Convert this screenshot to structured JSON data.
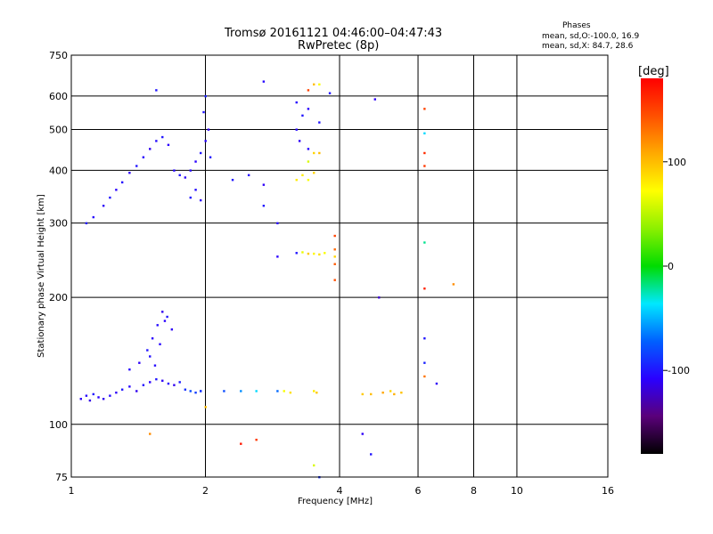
{
  "header": {
    "title_line1": "Tromsø 20161121 04:46:00–04:47:43",
    "title_line2": "RwPretec (8p)"
  },
  "stats": {
    "heading": "Phases",
    "line_o": "mean, sd,O:-100.0, 16.9",
    "line_x": "mean, sd,X: 84.7, 28.6"
  },
  "colorbar": {
    "label": "[deg]",
    "ticks": [
      "100",
      "0",
      "-100"
    ],
    "range": [
      -180,
      180
    ]
  },
  "chart_data": {
    "type": "scatter",
    "xlabel": "Frequency [MHz]",
    "ylabel": "Stationary phase Virtual Height [km]",
    "xscale": "log",
    "yscale": "log",
    "xlim": [
      1,
      16
    ],
    "ylim": [
      75,
      750
    ],
    "xticks": [
      1,
      2,
      4,
      6,
      8,
      10,
      16
    ],
    "yticks": [
      75,
      100,
      200,
      300,
      400,
      500,
      600,
      750
    ],
    "grid": true,
    "color_encoding": "phase [deg]",
    "series": [
      {
        "points": [
          [
            1.05,
            115,
            -110
          ],
          [
            1.08,
            117,
            -105
          ],
          [
            1.1,
            114,
            -115
          ],
          [
            1.12,
            118,
            -100
          ],
          [
            1.15,
            116,
            -108
          ],
          [
            1.18,
            115,
            -112
          ],
          [
            1.22,
            117,
            -104
          ],
          [
            1.26,
            119,
            -110
          ],
          [
            1.3,
            121,
            -100
          ],
          [
            1.35,
            123,
            -106
          ],
          [
            1.4,
            120,
            -112
          ],
          [
            1.45,
            124,
            -102
          ],
          [
            1.5,
            126,
            -108
          ],
          [
            1.55,
            128,
            -100
          ],
          [
            1.6,
            127,
            -110
          ],
          [
            1.65,
            125,
            -104
          ],
          [
            1.7,
            124,
            -112
          ],
          [
            1.75,
            126,
            -98
          ],
          [
            1.8,
            121,
            -90
          ],
          [
            1.85,
            120,
            -80
          ],
          [
            1.9,
            119,
            -85
          ],
          [
            1.95,
            120,
            -75
          ],
          [
            1.35,
            135,
            -105
          ],
          [
            1.42,
            140,
            -110
          ],
          [
            1.48,
            150,
            -100
          ],
          [
            1.52,
            160,
            -108
          ],
          [
            1.56,
            172,
            -104
          ],
          [
            1.6,
            185,
            -112
          ],
          [
            1.64,
            180,
            -100
          ],
          [
            1.68,
            168,
            -110
          ],
          [
            1.5,
            145,
            -102
          ],
          [
            1.58,
            155,
            -106
          ],
          [
            1.62,
            176,
            -108
          ],
          [
            1.54,
            138,
            -104
          ],
          [
            1.08,
            300,
            -100
          ],
          [
            1.12,
            310,
            -105
          ],
          [
            1.18,
            330,
            -110
          ],
          [
            1.22,
            345,
            -100
          ],
          [
            1.26,
            360,
            -108
          ],
          [
            1.3,
            375,
            -104
          ],
          [
            1.35,
            395,
            -110
          ],
          [
            1.4,
            410,
            -100
          ],
          [
            1.45,
            430,
            -106
          ],
          [
            1.5,
            450,
            -112
          ],
          [
            1.55,
            470,
            -104
          ],
          [
            1.6,
            480,
            -100
          ],
          [
            1.65,
            460,
            -108
          ],
          [
            1.7,
            400,
            -105
          ],
          [
            1.75,
            390,
            -100
          ],
          [
            1.8,
            385,
            -110
          ],
          [
            1.85,
            400,
            -104
          ],
          [
            1.9,
            420,
            -108
          ],
          [
            1.95,
            440,
            -100
          ],
          [
            2.0,
            470,
            -106
          ],
          [
            2.03,
            500,
            -110
          ],
          [
            2.05,
            430,
            -100
          ],
          [
            1.9,
            360,
            -104
          ],
          [
            1.95,
            340,
            -110
          ],
          [
            1.85,
            345,
            -100
          ],
          [
            1.98,
            550,
            -100
          ],
          [
            2.0,
            600,
            -95
          ],
          [
            2.3,
            380,
            -100
          ],
          [
            2.5,
            390,
            -105
          ],
          [
            2.7,
            370,
            -110
          ],
          [
            2.7,
            330,
            -100
          ],
          [
            2.9,
            300,
            -105
          ],
          [
            2.9,
            250,
            -108
          ],
          [
            3.2,
            255,
            -100
          ],
          [
            3.2,
            500,
            -105
          ],
          [
            3.3,
            540,
            -100
          ],
          [
            3.4,
            560,
            -108
          ],
          [
            3.2,
            580,
            -104
          ],
          [
            3.6,
            520,
            -100
          ],
          [
            3.4,
            450,
            -106
          ],
          [
            3.25,
            470,
            -110
          ],
          [
            2.2,
            120,
            -80
          ],
          [
            2.4,
            120,
            -60
          ],
          [
            2.6,
            120,
            -40
          ],
          [
            2.9,
            120,
            -70
          ],
          [
            1.95,
            120,
            -90
          ],
          [
            3.3,
            390,
            80
          ],
          [
            3.4,
            420,
            60
          ],
          [
            3.5,
            395,
            90
          ],
          [
            3.4,
            380,
            70
          ],
          [
            3.2,
            380,
            80
          ],
          [
            3.6,
            440,
            100
          ],
          [
            3.5,
            440,
            90
          ],
          [
            3.7,
            255,
            70
          ],
          [
            3.6,
            253,
            85
          ],
          [
            3.5,
            254,
            75
          ],
          [
            3.3,
            256,
            65
          ],
          [
            3.9,
            250,
            90
          ],
          [
            3.4,
            254,
            95
          ],
          [
            3.0,
            120,
            70
          ],
          [
            3.1,
            119,
            85
          ],
          [
            3.5,
            120,
            80
          ],
          [
            3.55,
            119,
            95
          ],
          [
            3.9,
            240,
            140
          ],
          [
            3.9,
            260,
            135
          ],
          [
            3.9,
            280,
            150
          ],
          [
            3.9,
            220,
            145
          ],
          [
            4.5,
            118,
            95
          ],
          [
            4.7,
            118,
            100
          ],
          [
            5.0,
            119,
            110
          ],
          [
            5.3,
            118,
            105
          ],
          [
            5.5,
            119,
            98
          ],
          [
            5.2,
            120,
            90
          ],
          [
            6.2,
            440,
            160
          ],
          [
            6.2,
            560,
            150
          ],
          [
            6.2,
            410,
            155
          ],
          [
            6.2,
            210,
            165
          ],
          [
            7.2,
            215,
            120
          ],
          [
            2.0,
            110,
            100
          ],
          [
            2.4,
            90,
            170
          ],
          [
            2.6,
            92,
            155
          ],
          [
            1.5,
            95,
            120
          ],
          [
            4.5,
            95,
            -110
          ],
          [
            4.7,
            85,
            -100
          ],
          [
            3.5,
            80,
            60
          ],
          [
            3.6,
            75,
            -90
          ],
          [
            4.9,
            200,
            -120
          ],
          [
            6.2,
            160,
            -100
          ],
          [
            6.2,
            140,
            -95
          ],
          [
            6.2,
            130,
            130
          ],
          [
            6.6,
            125,
            -110
          ],
          [
            6.2,
            270,
            -20
          ],
          [
            6.2,
            490,
            -40
          ],
          [
            2.7,
            650,
            -105
          ],
          [
            3.6,
            640,
            70
          ],
          [
            3.5,
            640,
            100
          ],
          [
            3.4,
            620,
            150
          ],
          [
            3.8,
            610,
            -100
          ],
          [
            4.8,
            590,
            -110
          ],
          [
            1.55,
            620,
            -100
          ]
        ]
      }
    ]
  }
}
